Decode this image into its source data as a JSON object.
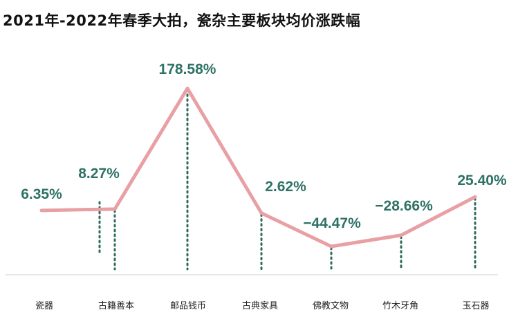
{
  "chart_data": {
    "type": "line",
    "title": "2021年-2022年春季大拍，瓷杂主要板块均价涨跌幅",
    "xlabel": "",
    "ylabel": "",
    "categories": [
      "瓷器",
      "古籍善本",
      "邮品钱币",
      "古典家具",
      "佛教文物",
      "竹木牙角",
      "玉石器"
    ],
    "values": [
      6.35,
      8.27,
      178.58,
      2.62,
      -44.47,
      -28.66,
      25.4
    ],
    "data_labels": [
      "6.35%",
      "8.27%",
      "178.58%",
      "2.62%",
      "−44.47%",
      "−28.66%",
      "25.40%"
    ],
    "ylim": [
      -60,
      190
    ],
    "grid": false,
    "legend": "none",
    "colors": {
      "line": "#E8A0A5",
      "label": "#2E7266",
      "dots": "#2E6A5E",
      "axis": "#D6D6D6"
    }
  }
}
